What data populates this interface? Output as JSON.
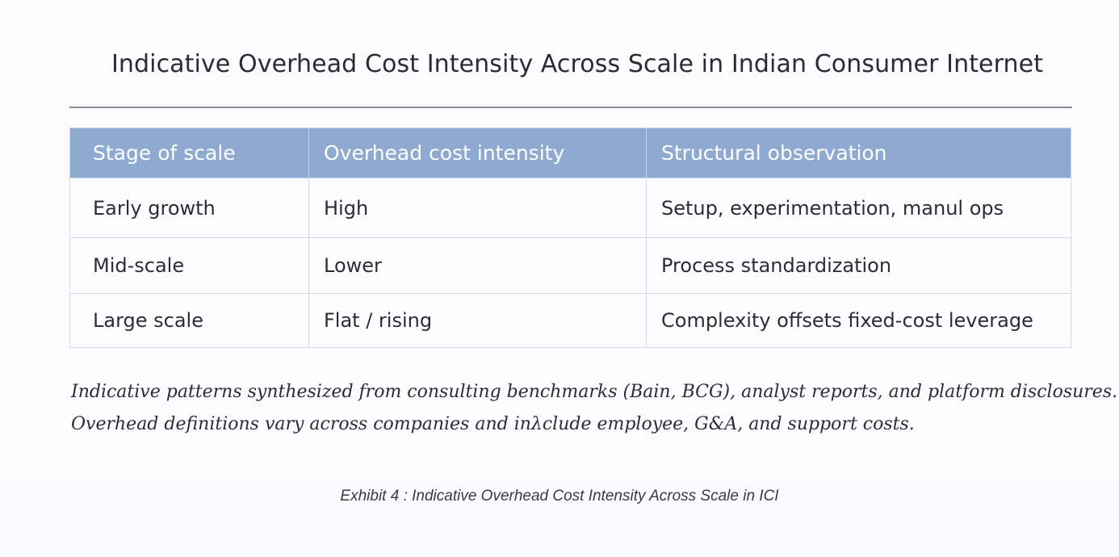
{
  "exhibit": {
    "title": "Indicative Overhead Cost Intensity Across Scale in Indian Consumer Internet",
    "table": {
      "headers": [
        "Stage of scale",
        "Overhead cost intensity",
        "Structural observation"
      ],
      "rows": [
        [
          "Early growth",
          "High",
          "Setup, experimentation, manul ops"
        ],
        [
          "Mid-scale",
          "Lower",
          "Process standardization"
        ],
        [
          "Large scale",
          "Flat / rising",
          "Complexity offsets fixed-cost leverage"
        ]
      ]
    },
    "note_lines": [
      "Indicative patterns synthesized from consulting benchmarks (Bain, BCG), analyst reports, and platform disclosures.",
      "Overhead definitions vary across companies and inλclude employee, G&A, and support costs."
    ]
  },
  "caption": "Exhibit 4 : Indicative Overhead Cost Intensity Across Scale in ICI",
  "colors": {
    "header_fill": "#8eaad1",
    "rule": "#8d8f96"
  }
}
